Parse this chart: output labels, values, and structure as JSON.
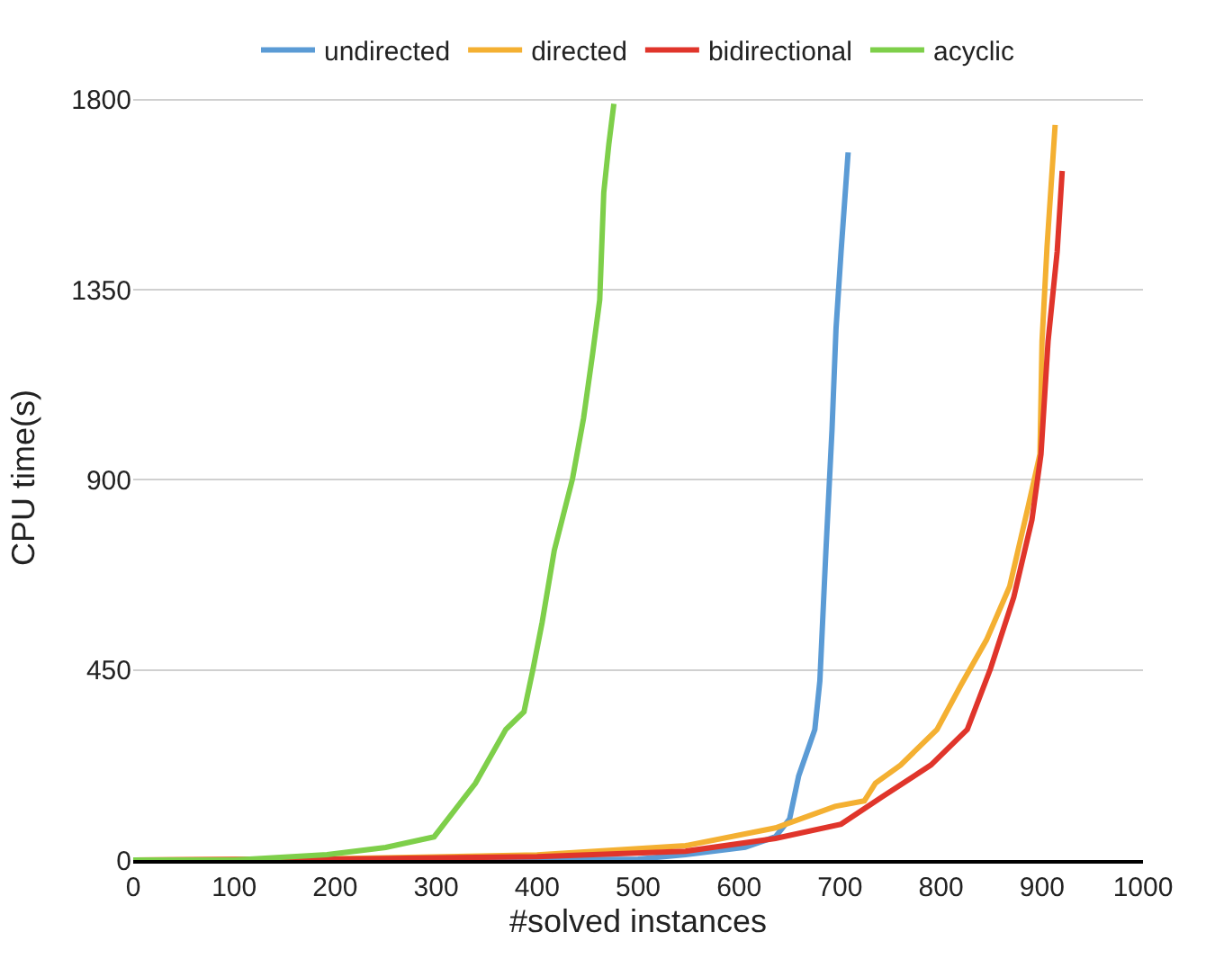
{
  "chart_data": {
    "type": "line",
    "xlabel": "#solved instances",
    "ylabel": "CPU time(s)",
    "xlim": [
      0,
      1000
    ],
    "xticks": [
      0,
      100,
      200,
      300,
      400,
      500,
      600,
      700,
      800,
      900,
      1000
    ],
    "ylim": [
      0,
      1810
    ],
    "yticks": [
      0,
      450,
      900,
      1350,
      1800
    ],
    "grid": "y",
    "legend": "top",
    "marker": "none",
    "line_style": "solid",
    "series": [
      {
        "name": "undirected",
        "color": "#5b9bd5",
        "x": [
          0,
          300,
          500,
          547,
          606,
          636,
          650,
          659,
          675,
          680,
          686,
          692,
          696,
          701,
          708
        ],
        "values": [
          0,
          0,
          2,
          13,
          30,
          55,
          97,
          199,
          309,
          424,
          733,
          1017,
          1258,
          1440,
          1675
        ]
      },
      {
        "name": "directed",
        "color": "#f4b032",
        "x": [
          0,
          200,
          400,
          547,
          636,
          695,
          724,
          735,
          760,
          796,
          819,
          845,
          868,
          886,
          898,
          900,
          905,
          913
        ],
        "values": [
          0,
          3,
          12,
          34,
          76,
          127,
          140,
          182,
          225,
          309,
          411,
          521,
          648,
          834,
          961,
          1228,
          1453,
          1740
        ]
      },
      {
        "name": "bidirectional",
        "color": "#e0352b",
        "x": [
          0,
          200,
          400,
          547,
          636,
          701,
          742,
          790,
          826,
          849,
          872,
          890,
          899,
          906,
          915,
          920
        ],
        "values": [
          0,
          2,
          8,
          21,
          51,
          85,
          150,
          225,
          309,
          453,
          622,
          805,
          961,
          1228,
          1440,
          1631
        ]
      },
      {
        "name": "acyclic",
        "color": "#7ecf4a",
        "x": [
          0,
          100,
          192,
          250,
          298,
          339,
          369,
          387,
          396,
          405,
          417,
          435,
          446,
          455,
          462,
          466,
          471,
          476
        ],
        "values": [
          0,
          0,
          13,
          30,
          55,
          182,
          309,
          351,
          453,
          563,
          733,
          902,
          1046,
          1199,
          1326,
          1580,
          1694,
          1790
        ]
      }
    ]
  }
}
